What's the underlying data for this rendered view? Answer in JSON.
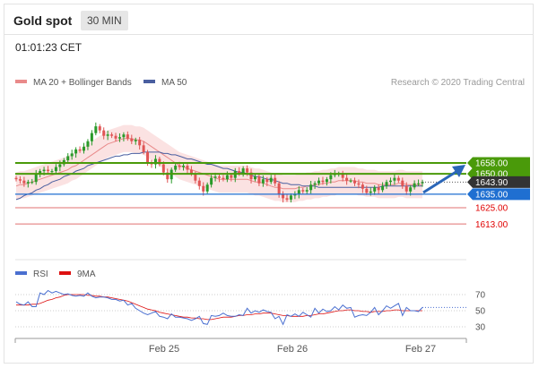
{
  "header": {
    "title": "Gold spot",
    "timeframe": "30 MIN"
  },
  "timestamp": "01:01:23 CET",
  "colors": {
    "candle": "#e05555",
    "candle_up": "#2a9a2a",
    "ma20": "#e98a8a",
    "ma50": "#4a5fa0",
    "band_fill": "#fbe2e2",
    "resistance": "#4a9a0a",
    "pivot": "#1f6fd1",
    "support": "#e07070",
    "price_label": "#333333",
    "rsi": "#4a6fd0",
    "rsi_ma": "#dd1111",
    "arrow": "#2a66b8"
  },
  "chart_data": [
    {
      "type": "candlestick",
      "title": "Gold spot",
      "legend": [
        {
          "name": "MA 20 + Bollinger Bands",
          "color": "#e98a8a"
        },
        {
          "name": "MA 50",
          "color": "#4a5fa0"
        }
      ],
      "legend_placement": "top-left",
      "attribution": "Research © 2020 Trading Central",
      "x_labels": [
        "Feb 25",
        "Feb 26",
        "Feb 27"
      ],
      "ylim": [
        1605,
        1700
      ],
      "levels": [
        {
          "label": "1658.00",
          "value": 1658.0,
          "kind": "resistance"
        },
        {
          "label": "1650.00",
          "value": 1650.0,
          "kind": "resistance"
        },
        {
          "label": "1643.90",
          "value": 1643.9,
          "kind": "last"
        },
        {
          "label": "1635.00",
          "value": 1635.0,
          "kind": "pivot"
        },
        {
          "label": "1625.00",
          "value": 1625.0,
          "kind": "support"
        },
        {
          "label": "1613.00",
          "value": 1613.0,
          "kind": "support"
        }
      ],
      "close": [
        1646,
        1645,
        1643,
        1644,
        1644,
        1650,
        1652,
        1653,
        1652,
        1652,
        1655,
        1657,
        1660,
        1663,
        1665,
        1668,
        1667,
        1670,
        1674,
        1680,
        1685,
        1682,
        1678,
        1679,
        1678,
        1676,
        1677,
        1679,
        1676,
        1674,
        1675,
        1671,
        1666,
        1658,
        1657,
        1661,
        1657,
        1651,
        1646,
        1653,
        1656,
        1655,
        1656,
        1653,
        1650,
        1645,
        1641,
        1637,
        1642,
        1647,
        1648,
        1647,
        1646,
        1649,
        1647,
        1652,
        1650,
        1654,
        1651,
        1646,
        1648,
        1643,
        1646,
        1644,
        1647,
        1643,
        1635,
        1632,
        1631,
        1634,
        1635,
        1638,
        1637,
        1638,
        1642,
        1643,
        1645,
        1644,
        1646,
        1649,
        1650,
        1650,
        1647,
        1645,
        1645,
        1643,
        1642,
        1639,
        1636,
        1637,
        1640,
        1638,
        1641,
        1644,
        1645,
        1647,
        1645,
        1641,
        1637,
        1640,
        1643,
        1643,
        1644
      ],
      "ma20": [
        1641,
        1642,
        1642,
        1643,
        1644,
        1645,
        1646,
        1647,
        1648,
        1649,
        1650,
        1651,
        1652,
        1653,
        1655,
        1656,
        1658,
        1660,
        1662,
        1664,
        1666,
        1668,
        1670,
        1672,
        1673,
        1674,
        1675,
        1676,
        1676,
        1676,
        1675,
        1675,
        1674,
        1672,
        1670,
        1668,
        1666,
        1664,
        1662,
        1660,
        1658,
        1656,
        1655,
        1654,
        1653,
        1652,
        1651,
        1650,
        1649,
        1648,
        1647,
        1646,
        1646,
        1646,
        1646,
        1646,
        1646,
        1646,
        1646,
        1645,
        1644,
        1644,
        1643,
        1642,
        1641,
        1640,
        1640,
        1639,
        1639,
        1639,
        1639,
        1640,
        1640,
        1641,
        1641,
        1642,
        1642,
        1643,
        1643,
        1644,
        1644,
        1645,
        1645,
        1645,
        1645,
        1645,
        1644,
        1644,
        1643,
        1643,
        1643,
        1642,
        1642,
        1642,
        1642,
        1642,
        1643,
        1643,
        1642,
        1642,
        1642,
        1642,
        1642
      ],
      "ma50": [
        1631,
        1632,
        1634,
        1635,
        1636,
        1638,
        1639,
        1641,
        1642,
        1644,
        1645,
        1646,
        1648,
        1649,
        1650,
        1652,
        1653,
        1654,
        1656,
        1657,
        1658,
        1659,
        1660,
        1661,
        1662,
        1663,
        1663,
        1664,
        1664,
        1665,
        1665,
        1665,
        1666,
        1666,
        1666,
        1666,
        1666,
        1665,
        1665,
        1664,
        1664,
        1663,
        1662,
        1661,
        1661,
        1660,
        1659,
        1658,
        1657,
        1657,
        1656,
        1655,
        1654,
        1654,
        1653,
        1652,
        1651,
        1651,
        1650,
        1649,
        1648,
        1648,
        1647,
        1646,
        1646,
        1645,
        1644,
        1643,
        1643,
        1642,
        1642,
        1642,
        1641,
        1641,
        1641,
        1641,
        1640,
        1640,
        1640,
        1640,
        1640,
        1640,
        1640,
        1640,
        1640,
        1640,
        1640,
        1640,
        1640,
        1640,
        1640,
        1640,
        1641,
        1641,
        1641,
        1641,
        1641,
        1641,
        1641,
        1641,
        1641,
        1641,
        1641
      ],
      "bb_half_width": 10
    },
    {
      "type": "line",
      "legend": [
        {
          "name": "RSI",
          "color": "#4a6fd0"
        },
        {
          "name": "9MA",
          "color": "#dd1111"
        }
      ],
      "y_ticks": [
        "70",
        "50",
        "30"
      ],
      "ylim": [
        20,
        85
      ],
      "rsi": [
        61,
        58,
        57,
        61,
        55,
        55,
        72,
        70,
        75,
        72,
        74,
        72,
        70,
        71,
        69,
        68,
        69,
        68,
        72,
        68,
        66,
        67,
        67,
        66,
        64,
        64,
        62,
        63,
        57,
        59,
        53,
        50,
        47,
        45,
        47,
        49,
        43,
        42,
        40,
        46,
        42,
        42,
        41,
        40,
        38,
        40,
        43,
        34,
        33,
        44,
        43,
        44,
        47,
        44,
        43,
        43,
        45,
        44,
        53,
        47,
        50,
        48,
        51,
        49,
        48,
        40,
        43,
        33,
        45,
        43,
        46,
        43,
        48,
        45,
        42,
        53,
        47,
        52,
        49,
        50,
        55,
        51,
        57,
        53,
        54,
        42,
        44,
        45,
        44,
        48,
        54,
        45,
        50,
        56,
        53,
        56,
        59,
        44,
        54,
        50,
        50,
        49,
        54
      ],
      "rsi_ma": [
        57,
        57,
        57,
        57,
        58,
        58,
        59,
        61,
        63,
        64,
        66,
        67,
        69,
        70,
        70,
        70,
        70,
        70,
        69,
        69,
        68,
        68,
        67,
        67,
        66,
        65,
        64,
        63,
        62,
        60,
        58,
        56,
        54,
        52,
        51,
        50,
        48,
        47,
        46,
        45,
        44,
        43,
        42,
        42,
        41,
        41,
        40,
        40,
        39,
        39,
        40,
        41,
        42,
        42,
        42,
        43,
        44,
        44,
        45,
        45,
        46,
        46,
        47,
        47,
        47,
        46,
        45,
        44,
        44,
        43,
        43,
        43,
        43,
        44,
        44,
        45,
        46,
        46,
        47,
        48,
        49,
        50,
        50,
        51,
        51,
        50,
        50,
        49,
        49,
        48,
        49,
        49,
        49,
        50,
        50,
        51,
        51,
        50,
        50,
        50,
        50,
        50,
        50
      ]
    }
  ]
}
